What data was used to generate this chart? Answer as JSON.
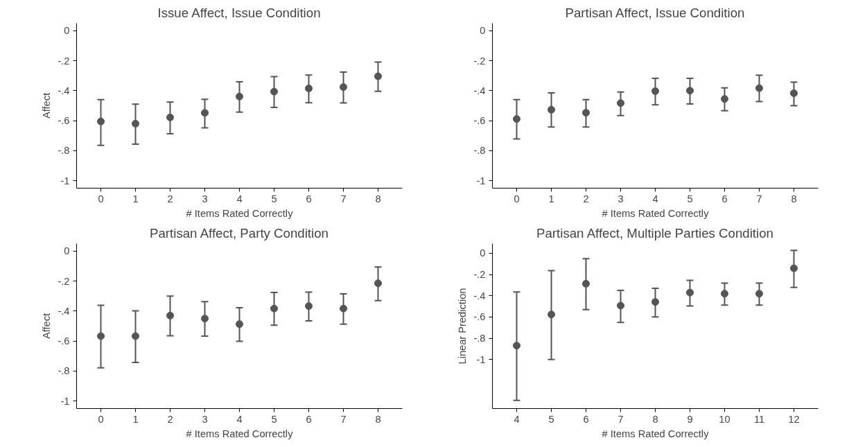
{
  "chart_data": [
    {
      "type": "scatter",
      "title": "Issue Affect, Issue Condition",
      "xlabel": "# Items Rated Correctly",
      "ylabel": "Affect",
      "marker": "circle",
      "grid": false,
      "x": [
        0,
        1,
        2,
        3,
        4,
        5,
        6,
        7,
        8
      ],
      "xlim": [
        -0.7,
        8.7
      ],
      "xticks": [
        0,
        1,
        2,
        3,
        4,
        5,
        6,
        7,
        8
      ],
      "ylim": [
        -1.05,
        0.05
      ],
      "yticks": [
        0,
        {
          "value": -0.2,
          "label": "-.2"
        },
        {
          "value": -0.4,
          "label": "-.4"
        },
        {
          "value": -0.6,
          "label": "-.6"
        },
        {
          "value": -0.8,
          "label": "-.8"
        },
        -1
      ],
      "series": [
        {
          "color": "#555555",
          "values": [
            -0.605,
            -0.62,
            -0.578,
            -0.548,
            -0.439,
            -0.406,
            -0.385,
            -0.376,
            -0.304
          ],
          "errors": [
            [
              -0.765,
              -0.46
            ],
            [
              -0.757,
              -0.49
            ],
            [
              -0.687,
              -0.476
            ],
            [
              -0.648,
              -0.457
            ],
            [
              -0.543,
              -0.341
            ],
            [
              -0.511,
              -0.306
            ],
            [
              -0.48,
              -0.296
            ],
            [
              -0.481,
              -0.276
            ],
            [
              -0.404,
              -0.209
            ]
          ]
        }
      ]
    },
    {
      "type": "scatter",
      "title": "Partisan Affect, Issue Condition",
      "xlabel": "# Items Rated Correctly",
      "marker": "circle",
      "grid": false,
      "x": [
        0,
        1,
        2,
        3,
        4,
        5,
        6,
        7,
        8
      ],
      "xlim": [
        -0.7,
        8.7
      ],
      "xticks": [
        0,
        1,
        2,
        3,
        4,
        5,
        6,
        7,
        8
      ],
      "ylim": [
        -1.05,
        0.05
      ],
      "yticks": [
        0,
        {
          "value": -0.2,
          "label": "-.2"
        },
        {
          "value": -0.4,
          "label": "-.4"
        },
        {
          "value": -0.6,
          "label": "-.6"
        },
        {
          "value": -0.8,
          "label": "-.8"
        },
        -1
      ],
      "series": [
        {
          "color": "#555555",
          "values": [
            -0.589,
            -0.527,
            -0.547,
            -0.483,
            -0.403,
            -0.4,
            -0.455,
            -0.383,
            -0.417
          ],
          "errors": [
            [
              -0.722,
              -0.46
            ],
            [
              -0.642,
              -0.415
            ],
            [
              -0.642,
              -0.46
            ],
            [
              -0.566,
              -0.409
            ],
            [
              -0.494,
              -0.318
            ],
            [
              -0.489,
              -0.318
            ],
            [
              -0.534,
              -0.381
            ],
            [
              -0.472,
              -0.297
            ],
            [
              -0.5,
              -0.343
            ]
          ]
        }
      ]
    },
    {
      "type": "scatter",
      "title": "Partisan Affect, Party Condition",
      "xlabel": "# Items Rated Correctly",
      "ylabel": "Affect",
      "marker": "circle",
      "grid": false,
      "x": [
        0,
        1,
        2,
        3,
        4,
        5,
        6,
        7,
        8
      ],
      "xlim": [
        -0.7,
        8.7
      ],
      "xticks": [
        0,
        1,
        2,
        3,
        4,
        5,
        6,
        7,
        8
      ],
      "ylim": [
        -1.05,
        0.05
      ],
      "yticks": [
        0,
        {
          "value": -0.2,
          "label": "-.2"
        },
        {
          "value": -0.4,
          "label": "-.4"
        },
        {
          "value": -0.6,
          "label": "-.6"
        },
        {
          "value": -0.8,
          "label": "-.8"
        },
        -1
      ],
      "series": [
        {
          "color": "#555555",
          "values": [
            -0.567,
            -0.567,
            -0.43,
            -0.45,
            -0.487,
            -0.383,
            -0.367,
            -0.383,
            -0.215
          ],
          "errors": [
            [
              -0.778,
              -0.361
            ],
            [
              -0.743,
              -0.398
            ],
            [
              -0.565,
              -0.3
            ],
            [
              -0.567,
              -0.337
            ],
            [
              -0.602,
              -0.378
            ],
            [
              -0.494,
              -0.276
            ],
            [
              -0.465,
              -0.274
            ],
            [
              -0.487,
              -0.285
            ],
            [
              -0.33,
              -0.106
            ]
          ]
        }
      ]
    },
    {
      "type": "scatter",
      "title": "Partisan Affect, Multiple Parties Condition",
      "xlabel": "# Items Rated Correctly",
      "ylabel": "Linear Prediction",
      "marker": "circle",
      "grid": false,
      "x": [
        4,
        5,
        6,
        7,
        8,
        9,
        10,
        11,
        12
      ],
      "xlim": [
        3.3,
        12.7
      ],
      "xticks": [
        4,
        5,
        6,
        7,
        8,
        9,
        10,
        11,
        12
      ],
      "ylim": [
        -1.46,
        0.09
      ],
      "yticks": [
        0,
        {
          "value": -0.2,
          "label": "-.2"
        },
        {
          "value": -0.4,
          "label": "-.4"
        },
        {
          "value": -0.6,
          "label": "-.6"
        },
        {
          "value": -0.8,
          "label": "-.8"
        },
        -1
      ],
      "series": [
        {
          "color": "#555555",
          "values": [
            -0.869,
            -0.576,
            -0.287,
            -0.493,
            -0.458,
            -0.37,
            -0.381,
            -0.381,
            -0.142
          ],
          "errors": [
            [
              -1.383,
              -0.365
            ],
            [
              -1.0,
              -0.164
            ],
            [
              -0.531,
              -0.051
            ],
            [
              -0.651,
              -0.349
            ],
            [
              -0.598,
              -0.33
            ],
            [
              -0.496,
              -0.255
            ],
            [
              -0.488,
              -0.282
            ],
            [
              -0.488,
              -0.282
            ],
            [
              -0.322,
              0.027
            ]
          ]
        }
      ]
    }
  ]
}
